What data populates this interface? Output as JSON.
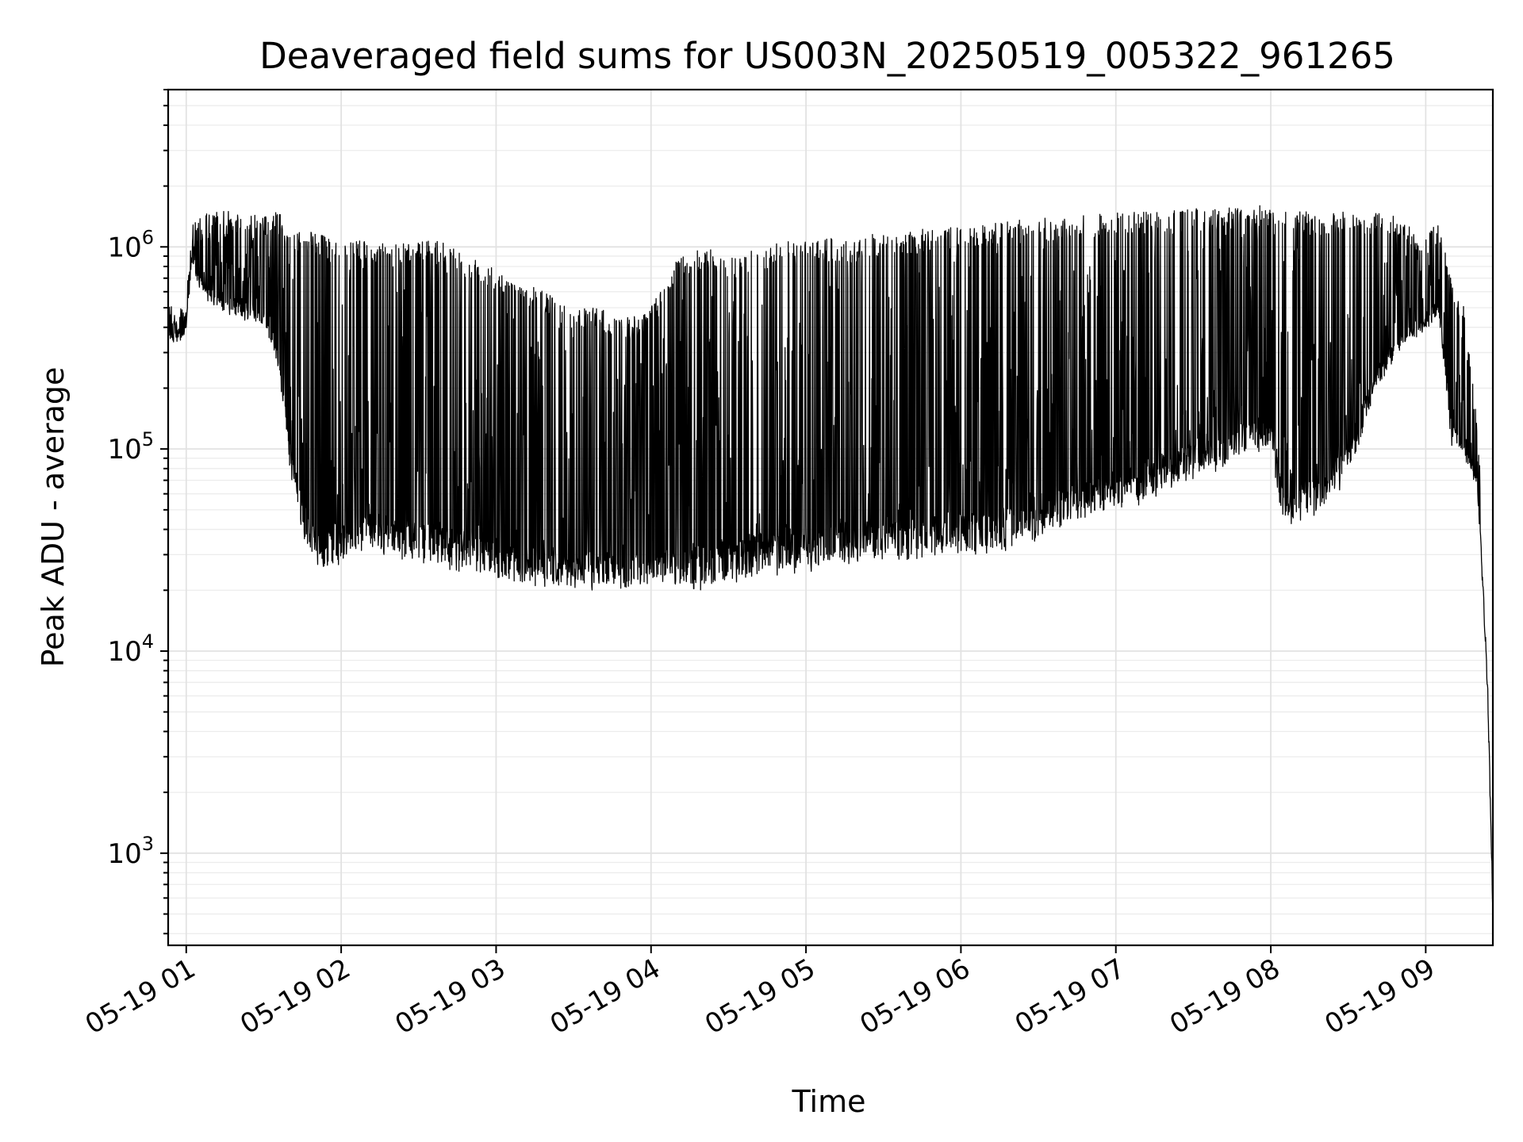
{
  "chart_data": {
    "type": "line",
    "title": "Deaveraged field sums for US003N_20250519_005322_961265",
    "xlabel": "Time",
    "ylabel": "Peak ADU - average",
    "yscale": "log",
    "ylim": [
      350,
      6000000
    ],
    "xlim": [
      "2025-05-19 00:53",
      "2025-05-19 09:26"
    ],
    "grid": true,
    "grid_color": "#e2e2e2",
    "line_color": "#000000",
    "x_tick_labels": [
      "05-19 01",
      "05-19 02",
      "05-19 03",
      "05-19 04",
      "05-19 05",
      "05-19 06",
      "05-19 07",
      "05-19 08",
      "05-19 09"
    ],
    "y_tick_labels": [
      {
        "base": "10",
        "exp": "3"
      },
      {
        "base": "10",
        "exp": "4"
      },
      {
        "base": "10",
        "exp": "5"
      },
      {
        "base": "10",
        "exp": "6"
      }
    ],
    "series": [
      {
        "x": [
          "00:53",
          "00:55",
          "01:00",
          "01:02",
          "01:05",
          "01:08",
          "01:12",
          "01:20",
          "01:30",
          "01:35",
          "01:38",
          "01:40",
          "01:45",
          "01:50",
          "01:55",
          "02:00",
          "02:10",
          "02:20",
          "02:30",
          "02:40",
          "02:50",
          "03:00",
          "03:10",
          "03:20",
          "03:30",
          "03:40",
          "03:50",
          "04:00",
          "04:10",
          "04:20",
          "04:30",
          "04:40",
          "04:50",
          "05:00",
          "05:10",
          "05:20",
          "05:30",
          "05:40",
          "05:50",
          "06:00",
          "06:10",
          "06:20",
          "06:30",
          "06:40",
          "06:50",
          "07:00",
          "07:10",
          "07:20",
          "07:30",
          "07:40",
          "07:50",
          "08:00",
          "08:05",
          "08:10",
          "08:20",
          "08:30",
          "08:40",
          "08:50",
          "09:00",
          "09:05",
          "09:10",
          "09:15",
          "09:20",
          "09:22",
          "09:24",
          "09:26"
        ],
        "floor": [
          400000,
          360000,
          420000,
          900000,
          700000,
          600000,
          550000,
          500000,
          450000,
          300000,
          150000,
          90000,
          40000,
          30000,
          28000,
          30000,
          35000,
          32000,
          30000,
          29000,
          27000,
          25000,
          24000,
          23000,
          22500,
          22000,
          22000,
          24000,
          23000,
          22000,
          24000,
          26000,
          27000,
          28000,
          29000,
          30000,
          31000,
          32000,
          33000,
          34000,
          33000,
          36000,
          40000,
          45000,
          50000,
          55000,
          60000,
          70000,
          80000,
          90000,
          100000,
          110000,
          45000,
          48000,
          55000,
          80000,
          200000,
          350000,
          420000,
          500000,
          120000,
          100000,
          70000,
          20000,
          6000,
          450
        ],
        "peak": [
          550000,
          500000,
          550000,
          1300000,
          1400000,
          1500000,
          1500000,
          1500000,
          1400000,
          1500000,
          1400000,
          1300000,
          1200000,
          1200000,
          1100000,
          1100000,
          1100000,
          1050000,
          1100000,
          1050000,
          900000,
          800000,
          700000,
          600000,
          500000,
          500000,
          450000,
          500000,
          900000,
          1000000,
          900000,
          1000000,
          1050000,
          1100000,
          1100000,
          1100000,
          1200000,
          1200000,
          1250000,
          1250000,
          1300000,
          1350000,
          1400000,
          1400000,
          1450000,
          1500000,
          1500000,
          1500000,
          1550000,
          1550000,
          1600000,
          1600000,
          1500000,
          1500000,
          1500000,
          1500000,
          1500000,
          1400000,
          1100000,
          1400000,
          700000,
          500000,
          150000,
          40000,
          12000,
          1200
        ]
      }
    ]
  }
}
